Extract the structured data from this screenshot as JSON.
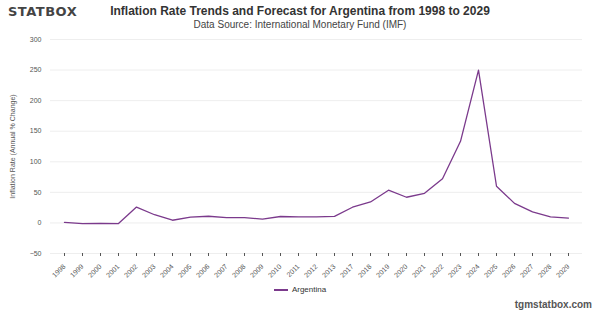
{
  "chart_data": {
    "type": "line",
    "title": "Inflation Rate Trends and Forecast for Argentina from 1998 to 2029",
    "subtitle": "Data Source: International Monetary Fund (IMF)",
    "logo": "STATBOX",
    "credit": "tgmstatbox.com",
    "y_label": "Inflation Rate (Annual % Change)",
    "categories": [
      "1998",
      "1999",
      "2000",
      "2001",
      "2002",
      "2003",
      "2004",
      "2005",
      "2006",
      "2007",
      "2008",
      "2009",
      "2010",
      "2011",
      "2012",
      "2013",
      "2017",
      "2018",
      "2019",
      "2020",
      "2021",
      "2022",
      "2023",
      "2024",
      "2025",
      "2026",
      "2027",
      "2028",
      "2029"
    ],
    "series": [
      {
        "name": "Argentina",
        "color": "#7b3a8c",
        "values": [
          0.9,
          -1.2,
          -0.9,
          -1.1,
          25.9,
          13.4,
          4.4,
          9.6,
          10.9,
          8.8,
          8.6,
          6.3,
          10.5,
          9.8,
          10.0,
          10.6,
          25.7,
          34.3,
          53.5,
          42.0,
          48.4,
          72.4,
          133.5,
          250,
          60,
          32,
          18,
          10,
          8
        ]
      }
    ],
    "ylim": [
      -50,
      300
    ],
    "yticks": [
      -50,
      0,
      50,
      100,
      150,
      200,
      250,
      300
    ],
    "grid": true,
    "legend": "bottom"
  }
}
